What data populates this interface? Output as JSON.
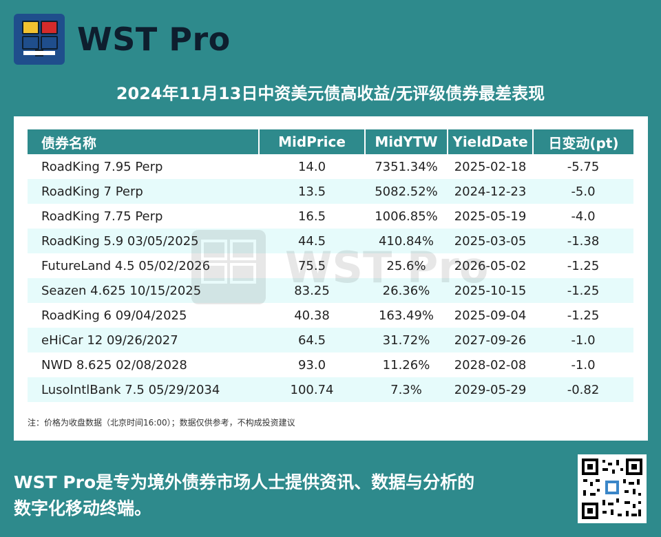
{
  "brand": {
    "name": "WST Pro"
  },
  "title": "2024年11月13日中资美元债高收益/无评级债券最差表现",
  "table": {
    "headers": [
      "债券名称",
      "MidPrice",
      "MidYTW",
      "YieldDate",
      "日变动(pt)"
    ],
    "rows": [
      [
        "RoadKing 7.95 Perp",
        "14.0",
        "7351.34%",
        "2025-02-18",
        "-5.75"
      ],
      [
        "RoadKing 7 Perp",
        "13.5",
        "5082.52%",
        "2024-12-23",
        "-5.0"
      ],
      [
        "RoadKing 7.75 Perp",
        "16.5",
        "1006.85%",
        "2025-05-19",
        "-4.0"
      ],
      [
        "RoadKing 5.9 03/05/2025",
        "44.5",
        "410.84%",
        "2025-03-05",
        "-1.38"
      ],
      [
        "FutureLand 4.5 05/02/2026",
        "75.5",
        "25.6%",
        "2026-05-02",
        "-1.25"
      ],
      [
        "Seazen 4.625 10/15/2025",
        "83.25",
        "26.36%",
        "2025-10-15",
        "-1.25"
      ],
      [
        "RoadKing 6 09/04/2025",
        "40.38",
        "163.49%",
        "2025-09-04",
        "-1.25"
      ],
      [
        "eHiCar 12 09/26/2027",
        "64.5",
        "31.72%",
        "2027-09-26",
        "-1.0"
      ],
      [
        "NWD 8.625 02/08/2028",
        "93.0",
        "11.26%",
        "2028-02-08",
        "-1.0"
      ],
      [
        "LusoIntlBank 7.5 05/29/2034",
        "100.74",
        "7.3%",
        "2029-05-29",
        "-0.82"
      ]
    ]
  },
  "note": "注：价格为收盘数据（北京时间16:00）；数据仅供参考，不构成投资建议",
  "footer": {
    "line1": "WST Pro是专为境外债券市场人士提供资讯、数据与分析的",
    "line2": "数字化移动终端。"
  },
  "colors": {
    "background": "#2e8a8c",
    "header": "#2e8a8c",
    "row_alt": "#e6fbfb",
    "logo_blue": "#1f4e8c"
  }
}
